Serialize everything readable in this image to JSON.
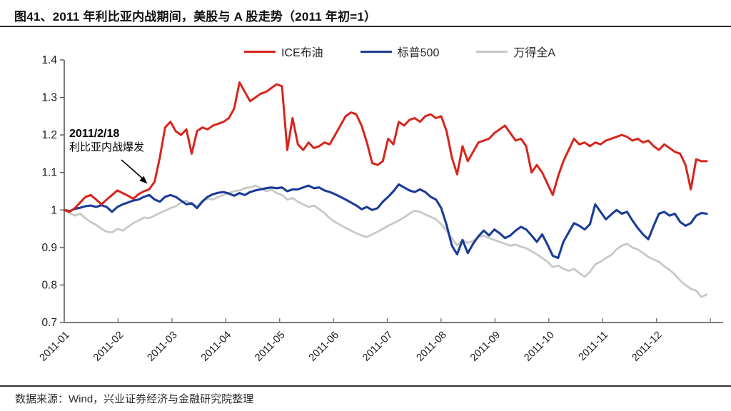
{
  "title": "图41、2011 年利比亚内战期间，美股与 A 股走势（2011 年初=1）",
  "source": "数据来源：Wind，兴业证券经济与金融研究院整理",
  "annotation": {
    "date": "2011/2/18",
    "event": "利比亚内战爆发"
  },
  "legend": [
    {
      "id": "ice_brent",
      "label": "ICE布油",
      "color": "#d7251d"
    },
    {
      "id": "sp500",
      "label": "标普500",
      "color": "#1b3c96"
    },
    {
      "id": "wind_all_a",
      "label": "万得全A",
      "color": "#c8c8c8"
    }
  ],
  "chart_data": {
    "type": "line",
    "title": "图41、2011 年利比亚内战期间，美股与 A 股走势（2011 年初=1）",
    "xlabel": "",
    "ylabel": "",
    "x_unit": "day_of_year_2011",
    "xlim_days": [
      0,
      365
    ],
    "ylim": [
      0.7,
      1.4
    ],
    "grid": false,
    "legend_position": "top-center",
    "ytick_values": [
      1.4,
      1.3,
      1.2,
      1.1,
      1.0,
      0.9,
      0.8,
      0.7
    ],
    "ytick_labels": [
      "1.4",
      "1.3",
      "1.2",
      "1.1",
      "1",
      "0.9",
      "0.8",
      "0.7"
    ],
    "xlabels": [
      "2011-01",
      "2011-02",
      "2011-03",
      "2011-04",
      "2011-05",
      "2011-06",
      "2011-07",
      "2011-08",
      "2011-09",
      "2011-10",
      "2011-11",
      "2011-12"
    ],
    "x_days": [
      0,
      3,
      6,
      9,
      12,
      15,
      18,
      21,
      24,
      27,
      30,
      33,
      36,
      39,
      42,
      45,
      48,
      51,
      54,
      57,
      60,
      63,
      66,
      69,
      72,
      75,
      78,
      81,
      84,
      87,
      90,
      93,
      96,
      99,
      102,
      105,
      108,
      111,
      114,
      117,
      120,
      123,
      126,
      129,
      132,
      135,
      138,
      141,
      144,
      147,
      150,
      153,
      156,
      159,
      162,
      165,
      168,
      171,
      174,
      177,
      180,
      183,
      186,
      189,
      192,
      195,
      198,
      201,
      204,
      207,
      210,
      213,
      216,
      219,
      222,
      225,
      228,
      231,
      234,
      237,
      240,
      243,
      246,
      249,
      252,
      255,
      258,
      261,
      264,
      267,
      270,
      273,
      276,
      279,
      282,
      285,
      288,
      291,
      294,
      297,
      300,
      303,
      306,
      309,
      312,
      315,
      318,
      321,
      324,
      327,
      330,
      333,
      336,
      339,
      342,
      345,
      348,
      351,
      354,
      357,
      360,
      363
    ],
    "series": [
      {
        "id": "wind_all_a",
        "name": "万得全A",
        "color": "#c8c8c8",
        "values": [
          1.0,
          0.992,
          0.985,
          0.99,
          0.978,
          0.968,
          0.96,
          0.95,
          0.942,
          0.94,
          0.95,
          0.945,
          0.955,
          0.965,
          0.972,
          0.98,
          0.978,
          0.985,
          0.992,
          0.998,
          1.005,
          1.01,
          1.02,
          1.025,
          1.015,
          1.01,
          1.025,
          1.03,
          1.028,
          1.035,
          1.04,
          1.045,
          1.05,
          1.052,
          1.058,
          1.06,
          1.065,
          1.058,
          1.05,
          1.055,
          1.045,
          1.04,
          1.028,
          1.032,
          1.022,
          1.015,
          1.008,
          1.012,
          1.002,
          0.992,
          0.978,
          0.968,
          0.96,
          0.952,
          0.945,
          0.938,
          0.932,
          0.928,
          0.935,
          0.942,
          0.95,
          0.958,
          0.965,
          0.972,
          0.98,
          0.99,
          0.998,
          0.995,
          0.988,
          0.982,
          0.975,
          0.962,
          0.945,
          0.925,
          0.905,
          0.92,
          0.912,
          0.918,
          0.928,
          0.932,
          0.925,
          0.92,
          0.915,
          0.91,
          0.905,
          0.908,
          0.902,
          0.898,
          0.89,
          0.882,
          0.872,
          0.862,
          0.848,
          0.852,
          0.843,
          0.838,
          0.843,
          0.832,
          0.822,
          0.835,
          0.855,
          0.862,
          0.872,
          0.88,
          0.895,
          0.905,
          0.91,
          0.9,
          0.895,
          0.885,
          0.875,
          0.868,
          0.862,
          0.85,
          0.84,
          0.828,
          0.812,
          0.8,
          0.79,
          0.785,
          0.768,
          0.775
        ]
      },
      {
        "id": "sp500",
        "name": "标普500",
        "color": "#1b3c96",
        "values": [
          1.0,
          0.997,
          1.003,
          1.006,
          1.01,
          1.012,
          1.008,
          1.013,
          1.008,
          0.995,
          1.008,
          1.015,
          1.02,
          1.025,
          1.028,
          1.035,
          1.04,
          1.028,
          1.022,
          1.035,
          1.04,
          1.035,
          1.025,
          1.015,
          1.018,
          1.005,
          1.022,
          1.035,
          1.042,
          1.046,
          1.048,
          1.044,
          1.038,
          1.045,
          1.04,
          1.048,
          1.052,
          1.055,
          1.058,
          1.06,
          1.058,
          1.06,
          1.05,
          1.055,
          1.055,
          1.06,
          1.065,
          1.058,
          1.06,
          1.052,
          1.048,
          1.042,
          1.035,
          1.028,
          1.02,
          1.012,
          1.002,
          1.008,
          1.0,
          1.005,
          1.022,
          1.035,
          1.05,
          1.068,
          1.06,
          1.052,
          1.048,
          1.055,
          1.048,
          1.035,
          1.028,
          1.005,
          0.96,
          0.905,
          0.882,
          0.92,
          0.885,
          0.91,
          0.93,
          0.945,
          0.932,
          0.948,
          0.938,
          0.925,
          0.932,
          0.945,
          0.955,
          0.948,
          0.932,
          0.915,
          0.935,
          0.908,
          0.878,
          0.872,
          0.915,
          0.94,
          0.965,
          0.958,
          0.948,
          0.962,
          1.015,
          0.995,
          0.975,
          0.988,
          1.0,
          0.99,
          0.995,
          0.972,
          0.952,
          0.935,
          0.922,
          0.958,
          0.99,
          0.995,
          0.985,
          0.99,
          0.968,
          0.958,
          0.965,
          0.985,
          0.992,
          0.99
        ]
      },
      {
        "id": "ice_brent",
        "name": "ICE布油",
        "color": "#d7251d",
        "values": [
          1.0,
          0.995,
          1.005,
          1.02,
          1.035,
          1.04,
          1.028,
          1.015,
          1.028,
          1.04,
          1.052,
          1.045,
          1.038,
          1.03,
          1.042,
          1.05,
          1.055,
          1.075,
          1.14,
          1.22,
          1.235,
          1.21,
          1.2,
          1.215,
          1.15,
          1.21,
          1.22,
          1.215,
          1.225,
          1.23,
          1.235,
          1.245,
          1.27,
          1.34,
          1.315,
          1.29,
          1.3,
          1.31,
          1.315,
          1.325,
          1.335,
          1.33,
          1.16,
          1.245,
          1.175,
          1.16,
          1.18,
          1.165,
          1.17,
          1.18,
          1.175,
          1.2,
          1.225,
          1.25,
          1.26,
          1.255,
          1.225,
          1.18,
          1.125,
          1.12,
          1.13,
          1.19,
          1.175,
          1.235,
          1.225,
          1.24,
          1.245,
          1.235,
          1.25,
          1.255,
          1.245,
          1.25,
          1.21,
          1.14,
          1.095,
          1.17,
          1.13,
          1.155,
          1.18,
          1.185,
          1.19,
          1.205,
          1.215,
          1.225,
          1.205,
          1.185,
          1.19,
          1.17,
          1.1,
          1.12,
          1.1,
          1.07,
          1.04,
          1.09,
          1.13,
          1.16,
          1.19,
          1.175,
          1.18,
          1.17,
          1.18,
          1.175,
          1.185,
          1.19,
          1.195,
          1.2,
          1.195,
          1.185,
          1.19,
          1.18,
          1.185,
          1.17,
          1.16,
          1.175,
          1.165,
          1.155,
          1.15,
          1.12,
          1.055,
          1.135,
          1.13,
          1.13
        ]
      }
    ],
    "event_annotation": {
      "day": 49,
      "value_on_red": 1.055,
      "date_label": "2011/2/18",
      "event_label": "利比亚内战爆发"
    }
  }
}
